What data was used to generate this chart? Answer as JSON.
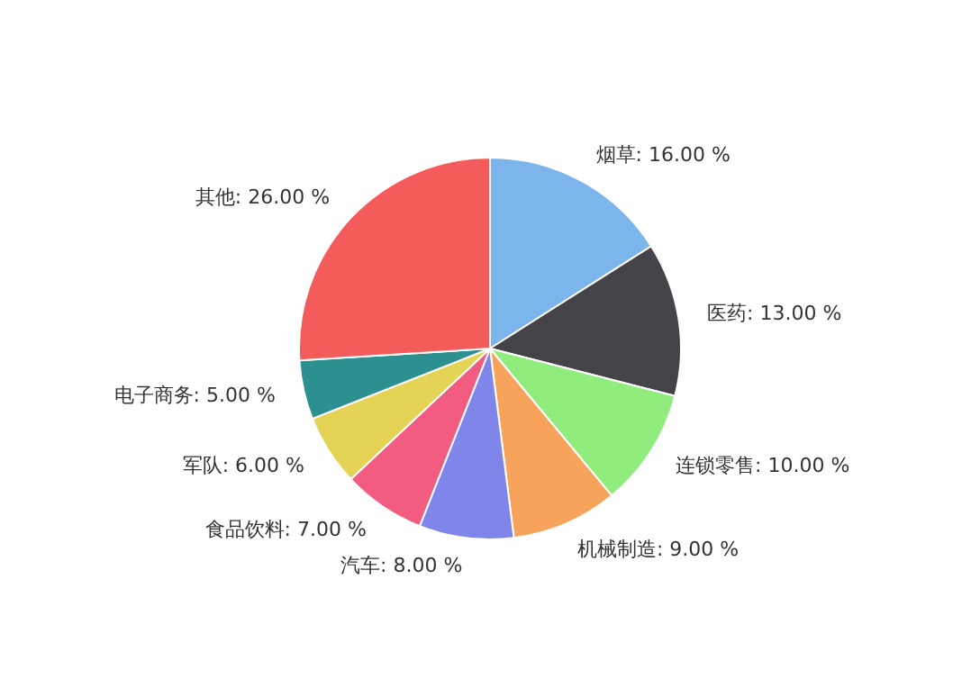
{
  "chart_data": {
    "type": "pie",
    "categories": [
      "烟草",
      "医药",
      "连锁零售",
      "机械制造",
      "汽车",
      "食品饮料",
      "军队",
      "电子商务",
      "其他"
    ],
    "values": [
      16,
      13,
      10,
      9,
      8,
      7,
      6,
      5,
      26
    ],
    "value_labels": [
      "16.00 %",
      "13.00 %",
      "10.00 %",
      "9.00 %",
      "8.00 %",
      "7.00 %",
      "6.00 %",
      "5.00 %",
      "26.00 %"
    ],
    "colors": [
      "#7cb5ec",
      "#434348",
      "#90ed7d",
      "#f7a35c",
      "#8085e9",
      "#f15c80",
      "#e4d354",
      "#2b908f",
      "#f45b5b"
    ]
  }
}
